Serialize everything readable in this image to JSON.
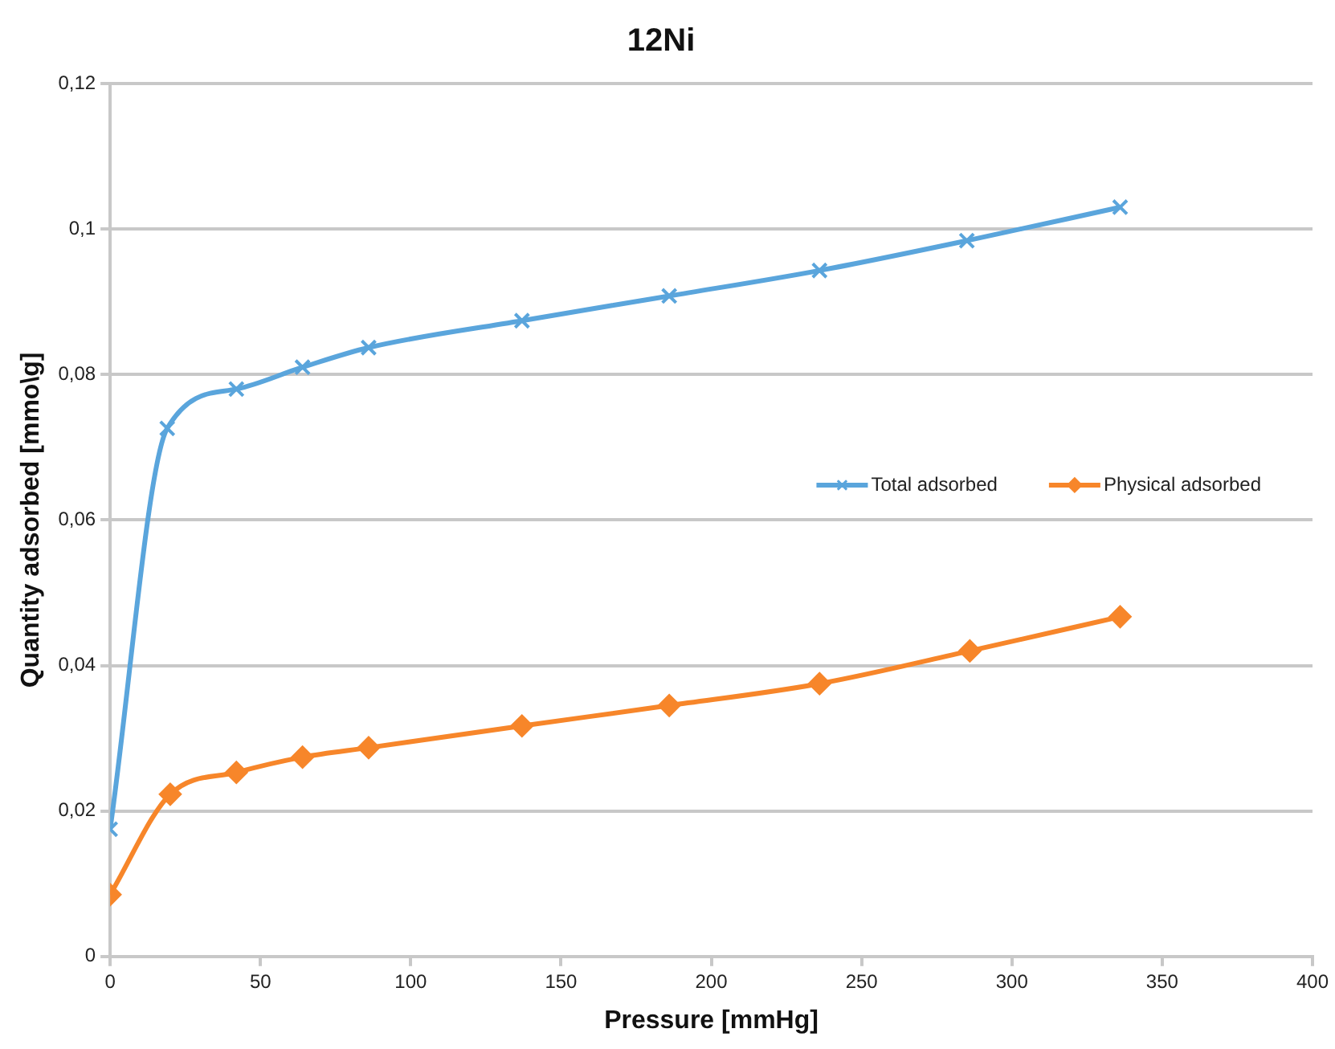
{
  "chart_data": {
    "type": "line",
    "title": "12Ni",
    "xlabel": "Pressure [mmHg]",
    "ylabel": "Quantity adsorbed [mmo\\g]",
    "series": [
      {
        "name": "Total adsorbed",
        "color": "#5aa5dc",
        "marker": "cross",
        "x": [
          0,
          19,
          42,
          64,
          86,
          137,
          186,
          236,
          285,
          336
        ],
        "values": [
          0.0175,
          0.0726,
          0.078,
          0.081,
          0.0837,
          0.0874,
          0.0908,
          0.0943,
          0.0984,
          0.103
        ]
      },
      {
        "name": "Physical adsorbed",
        "color": "#f7862a",
        "marker": "diamond",
        "x": [
          0,
          20,
          42,
          64,
          86,
          137,
          186,
          236,
          286,
          336
        ],
        "values": [
          0.0085,
          0.0223,
          0.0253,
          0.0274,
          0.0287,
          0.0317,
          0.0345,
          0.0375,
          0.042,
          0.0467
        ]
      }
    ],
    "xlim": [
      0,
      400
    ],
    "xticks": [
      0,
      50,
      100,
      150,
      200,
      250,
      300,
      350,
      400
    ],
    "ylim": [
      0,
      0.12
    ],
    "yticks": [
      0,
      {
        "value": 0.02,
        "label": "0,02"
      },
      {
        "value": 0.04,
        "label": "0,04"
      },
      {
        "value": 0.06,
        "label": "0,06"
      },
      {
        "value": 0.08,
        "label": "0,08"
      },
      {
        "value": 0.1,
        "label": "0,1"
      },
      {
        "value": 0.12,
        "label": "0,12"
      }
    ],
    "grid": "y",
    "legend": "right"
  }
}
